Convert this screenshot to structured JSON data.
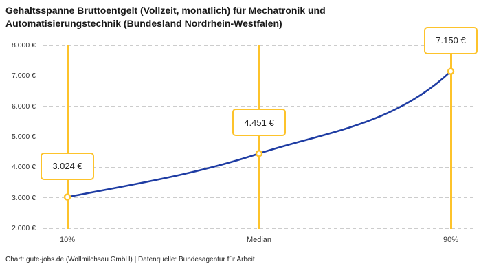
{
  "header": {
    "title_line1": "Gehaltsspanne Bruttoentgelt (Vollzeit, monatlich) für Mechatronik und",
    "title_line2": "Automatisierungstechnik (Bundesland Nordrhein-Westfalen)"
  },
  "footer": {
    "attribution": "Chart: gute-jobs.de (Wollmilchsau GmbH) | Datenquelle: Bundesagentur für Arbeit"
  },
  "chart_data": {
    "type": "line",
    "title": "Gehaltsspanne Bruttoentgelt (Vollzeit, monatlich) für Mechatronik und Automatisierungstechnik (Bundesland Nordrhein-Westfalen)",
    "categories": [
      "10%",
      "Median",
      "90%"
    ],
    "values": [
      3024,
      4451,
      7150
    ],
    "point_labels": [
      "3.024 €",
      "4.451 €",
      "7.150 €"
    ],
    "y_tick_values": [
      8000,
      7000,
      6000,
      5000,
      4000,
      3000,
      2000
    ],
    "y_tick_labels": [
      "8.000 €",
      "7.000 €",
      "6.000 €",
      "5.000 €",
      "4.000 €",
      "3.000 €",
      "2.000 €"
    ],
    "ylim": [
      2000,
      8000
    ],
    "xlabel": "",
    "ylabel": "",
    "grid": "horizontal-dashed",
    "legend": "none",
    "colors": {
      "line": "#1E3CA3",
      "accent_yellow": "#FDC32B",
      "gridline": "#cccccc",
      "marker_fill": "#ffffff",
      "text": "#333333"
    }
  }
}
